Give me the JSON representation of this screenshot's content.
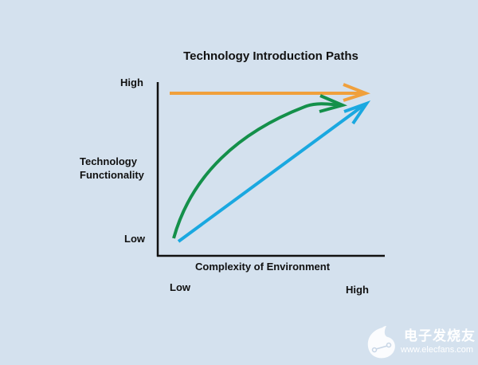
{
  "title": "Technology Introduction Paths",
  "y_axis": {
    "label_line1": "Technology",
    "label_line2": "Functionality",
    "high": "High",
    "low": "Low"
  },
  "x_axis": {
    "label": "Complexity of Environment",
    "low": "Low",
    "high": "High"
  },
  "paths": [
    {
      "color": "#f0a03c",
      "shape": "straight horizontal at high functionality"
    },
    {
      "color": "#14904a",
      "shape": "concave curve from low to high"
    },
    {
      "color": "#1aa8e0",
      "shape": "straight diagonal from low to high"
    }
  ],
  "watermark": {
    "text": "电子发烧友",
    "url": "www.elecfans.com"
  }
}
